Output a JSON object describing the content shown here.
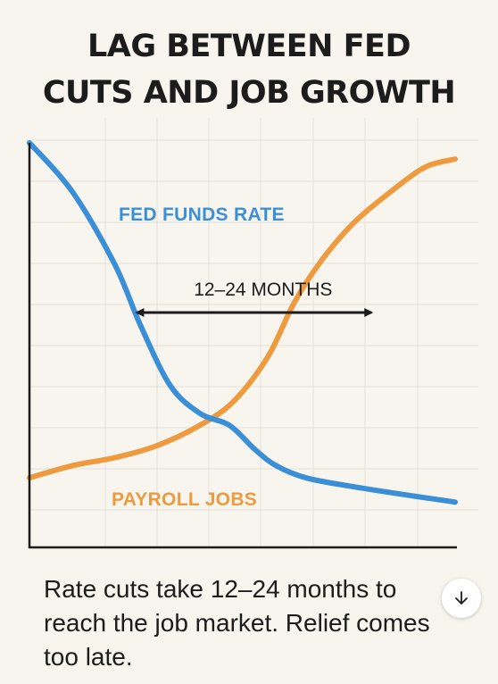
{
  "colors": {
    "background": "#f8f5ef",
    "grid": "#e3e0da",
    "fed_funds": "#3b8fd6",
    "payroll": "#ee9a3e",
    "text": "#1c1c1c"
  },
  "chart_data": {
    "type": "line",
    "title": "LAG BETWEEN FED CUTS AND JOB GROWTH",
    "xlabel": "",
    "ylabel": "",
    "xlim": [
      0,
      100
    ],
    "ylim": [
      0,
      100
    ],
    "grid": true,
    "series": [
      {
        "name": "FED FUNDS RATE",
        "color": "#3b8fd6",
        "x": [
          0,
          10,
          20,
          26,
          33,
          40,
          47,
          53,
          58,
          65,
          75,
          87,
          100
        ],
        "y": [
          100,
          88,
          70,
          55,
          40,
          33,
          30,
          24,
          20,
          17,
          15,
          13,
          11
        ]
      },
      {
        "name": "PAYROLL JOBS",
        "color": "#ee9a3e",
        "x": [
          0,
          10,
          20,
          30,
          40,
          48,
          56,
          62,
          68,
          76,
          85,
          93,
          100
        ],
        "y": [
          17,
          20,
          22,
          25,
          30,
          36,
          47,
          60,
          70,
          80,
          88,
          94,
          96
        ]
      }
    ],
    "annotations": [
      {
        "text": "12–24 MONTHS",
        "type": "double-arrow",
        "from_x": 33,
        "to_x": 73,
        "y": 62
      }
    ]
  },
  "caption": "Rate cuts take 12–24 months to reach the job market. Relief comes too late.",
  "scroll_button": {
    "icon": "arrow-down-icon"
  }
}
